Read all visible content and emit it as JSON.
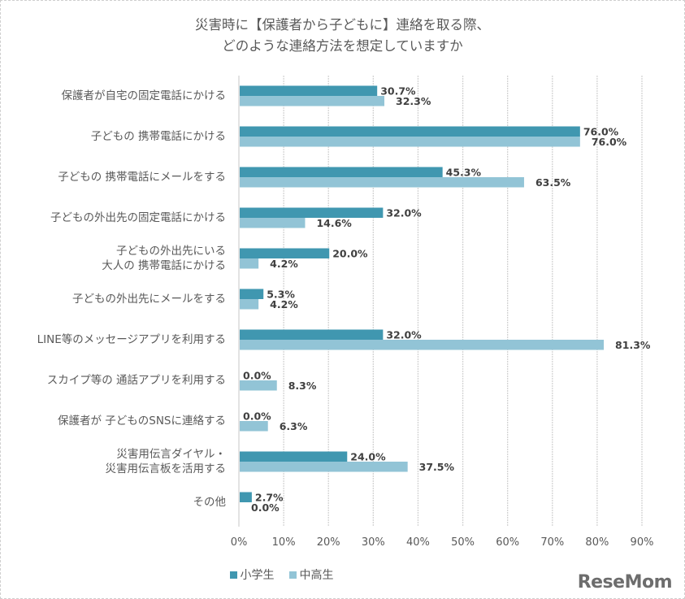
{
  "chart_data": {
    "type": "bar",
    "orientation": "horizontal",
    "title": [
      "災害時に【保護者から子どもに】連絡を取る際、",
      "どのような連絡方法を想定していますか"
    ],
    "categories": [
      [
        "保護者が自宅の固定電話にかける"
      ],
      [
        "子どもの 携帯電話にかける"
      ],
      [
        "子どもの 携帯電話にメールをする"
      ],
      [
        "子どもの外出先の固定電話にかける"
      ],
      [
        "子どもの外出先にいる",
        "大人の 携帯電話にかける"
      ],
      [
        "子どもの外出先にメールをする"
      ],
      [
        "LINE等のメッセージアプリを利用する"
      ],
      [
        "スカイプ等の 通話アプリを利用する"
      ],
      [
        "保護者が 子どものSNSに連絡する"
      ],
      [
        "災害用伝言ダイヤル・",
        "災害用伝言板を活用する"
      ],
      [
        "その他"
      ]
    ],
    "series": [
      {
        "name": "小学生",
        "color": "#4097b0",
        "values": [
          30.7,
          76.0,
          45.3,
          32.0,
          20.0,
          5.3,
          32.0,
          0.0,
          0.0,
          24.0,
          2.7
        ]
      },
      {
        "name": "中高生",
        "color": "#92c4d6",
        "values": [
          32.3,
          76.0,
          63.5,
          14.6,
          4.2,
          4.2,
          81.3,
          8.3,
          6.3,
          37.5,
          0.0
        ]
      }
    ],
    "value_suffix": "%",
    "xlim": [
      0,
      90
    ],
    "xticks": [
      "0%",
      "10%",
      "20%",
      "30%",
      "40%",
      "50%",
      "60%",
      "70%",
      "80%",
      "90%"
    ],
    "grid": true,
    "legend": "bottom",
    "xlabel": "",
    "ylabel": ""
  },
  "watermark": "ReseMom"
}
